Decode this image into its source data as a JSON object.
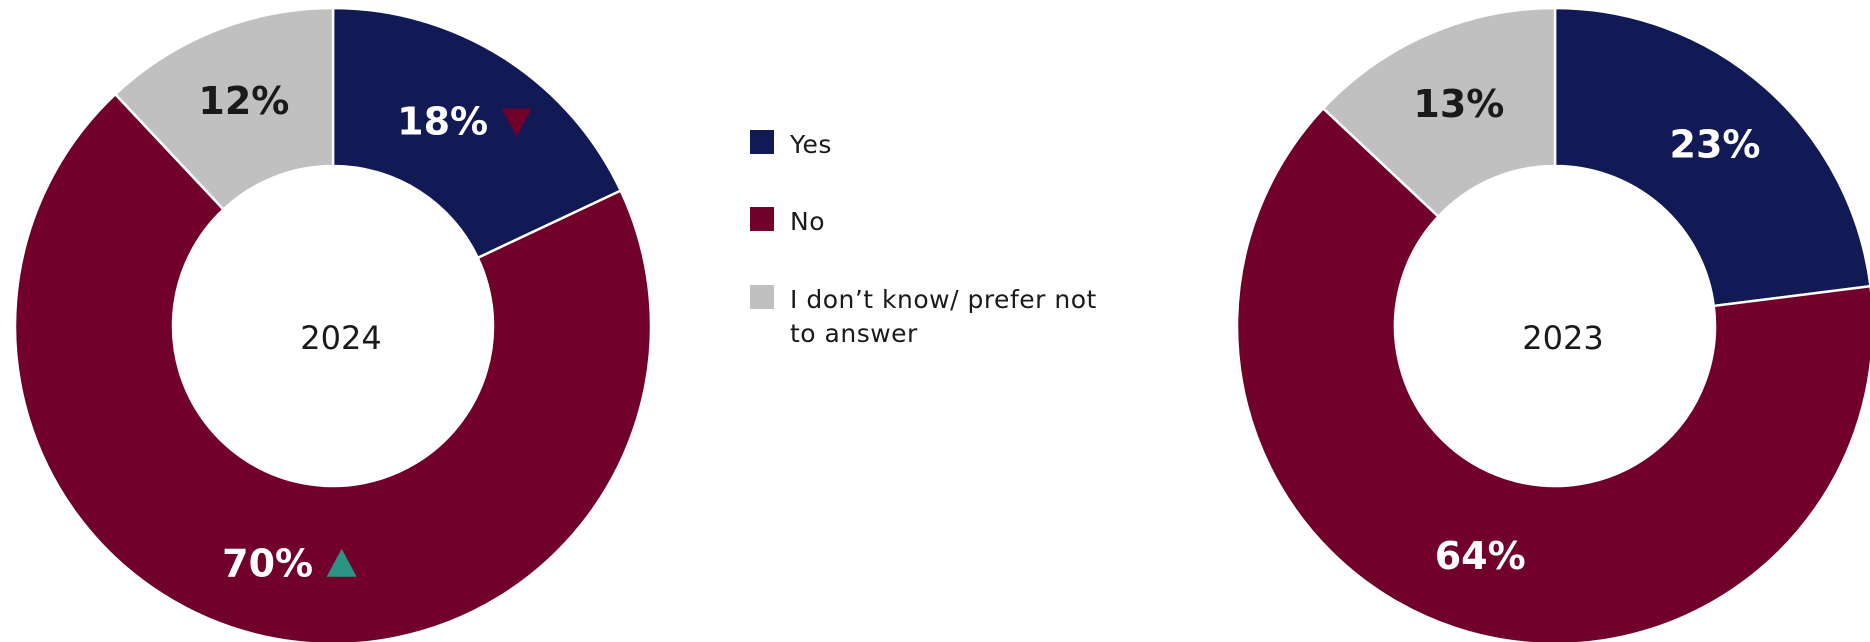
{
  "colors": {
    "yes": "#121a56",
    "no": "#71002b",
    "dont_know": "#c0c0c0",
    "up_arrow": "#2a9585",
    "down_arrow": "#71002b"
  },
  "legend": [
    {
      "label": "Yes",
      "color": "#121a56"
    },
    {
      "label": "No",
      "color": "#71002b"
    },
    {
      "label": "I don’t know/ prefer not to answer",
      "color": "#c0c0c0"
    }
  ],
  "chart_data": [
    {
      "type": "pie",
      "center_label": "2024",
      "categories": [
        "Yes",
        "No",
        "I don’t know/ prefer not to answer"
      ],
      "values": [
        18,
        70,
        12
      ],
      "labels": [
        "18%",
        "70%",
        "12%"
      ],
      "change_markers": [
        "down",
        "up",
        null
      ]
    },
    {
      "type": "pie",
      "center_label": "2023",
      "categories": [
        "Yes",
        "No",
        "I don’t know/ prefer not to answer"
      ],
      "values": [
        23,
        64,
        13
      ],
      "labels": [
        "23%",
        "64%",
        "13%"
      ],
      "change_markers": [
        null,
        null,
        null
      ]
    }
  ]
}
